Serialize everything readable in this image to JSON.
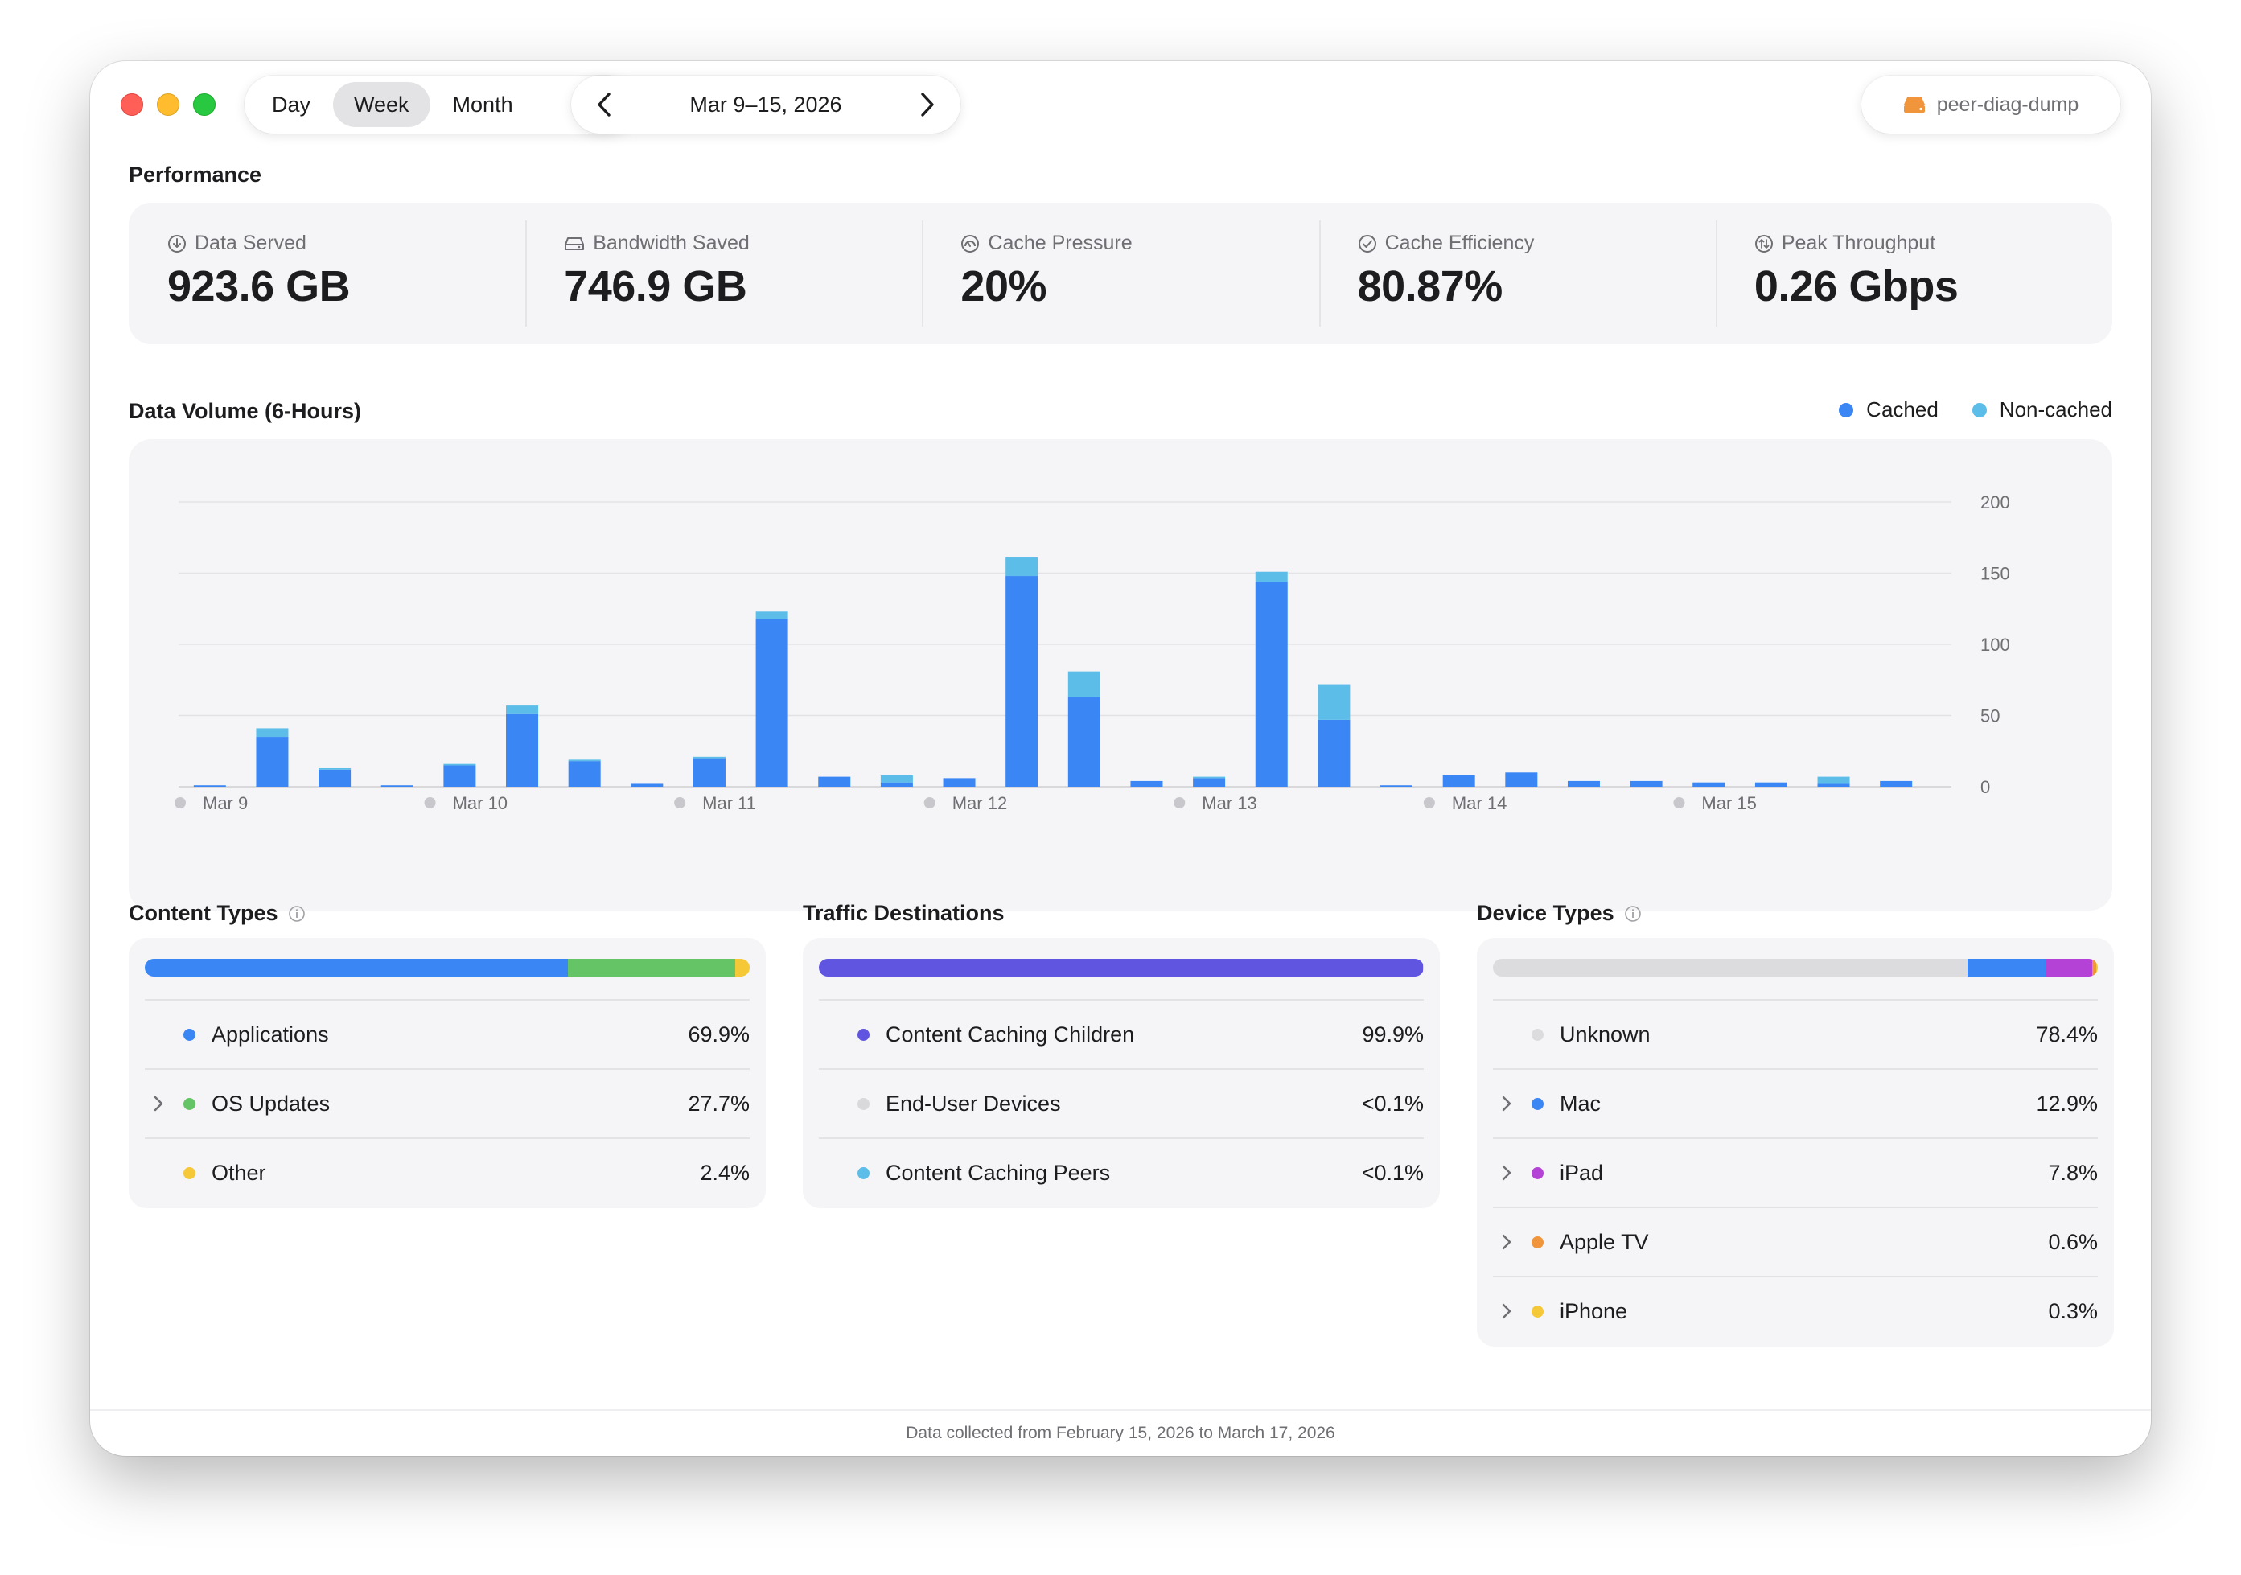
{
  "toolbar": {
    "periods": [
      "Day",
      "Week",
      "Month"
    ],
    "selected_period": "Week",
    "date_range": "Mar 9–15, 2026",
    "device_name": "peer-diag-dump"
  },
  "performance": {
    "title": "Performance",
    "metrics": [
      {
        "label": "Data Served",
        "value": "923.6 GB",
        "icon": "download-circle-icon"
      },
      {
        "label": "Bandwidth Saved",
        "value": "746.9 GB",
        "icon": "drive-icon"
      },
      {
        "label": "Cache Pressure",
        "value": "20%",
        "icon": "gauge-icon"
      },
      {
        "label": "Cache Efficiency",
        "value": "80.87%",
        "icon": "checkmark-circle-icon"
      },
      {
        "label": "Peak Throughput",
        "value": "0.26 Gbps",
        "icon": "arrows-updown-circle-icon"
      }
    ]
  },
  "volume": {
    "title": "Data Volume (6-Hours)",
    "legend": {
      "cached": "Cached",
      "noncached": "Non-cached"
    }
  },
  "colors": {
    "cached": "#3a86f4",
    "noncached": "#5cbde8",
    "accent_orange": "#f0953c",
    "traffic_purple": "#5f55e0"
  },
  "chart_data": {
    "type": "bar",
    "stacked": true,
    "x": [
      "Mar 9 00",
      "Mar 9 06",
      "Mar 9 12",
      "Mar 9 18",
      "Mar 10 00",
      "Mar 10 06",
      "Mar 10 12",
      "Mar 10 18",
      "Mar 11 00",
      "Mar 11 06",
      "Mar 11 12",
      "Mar 11 18",
      "Mar 12 00",
      "Mar 12 06",
      "Mar 12 12",
      "Mar 12 18",
      "Mar 13 00",
      "Mar 13 06",
      "Mar 13 12",
      "Mar 13 18",
      "Mar 14 00",
      "Mar 14 06",
      "Mar 14 12",
      "Mar 14 18",
      "Mar 15 00",
      "Mar 15 06",
      "Mar 15 12",
      "Mar 15 18"
    ],
    "tick_labels": [
      "Mar 9",
      "Mar 10",
      "Mar 11",
      "Mar 12",
      "Mar 13",
      "Mar 14",
      "Mar 15"
    ],
    "series": [
      {
        "name": "Cached",
        "values": [
          1,
          35,
          12,
          1,
          15,
          51,
          18,
          2,
          20,
          118,
          7,
          3,
          6,
          148,
          63,
          4,
          6,
          144,
          47,
          1,
          8,
          10,
          4,
          4,
          3,
          3,
          2,
          4
        ]
      },
      {
        "name": "Non-cached",
        "values": [
          0,
          6,
          1,
          0,
          1,
          6,
          1,
          0,
          1,
          5,
          0,
          5,
          0,
          13,
          18,
          0,
          1,
          7,
          25,
          0,
          0,
          0,
          0,
          0,
          0,
          0,
          5,
          0
        ]
      }
    ],
    "y_ticks": [
      0,
      50,
      100,
      150,
      200
    ],
    "ylim": [
      0,
      200
    ],
    "grid": true,
    "legend_position": "top-right"
  },
  "content_types": {
    "title": "Content Types",
    "info_icon": "info-circle-icon",
    "items": [
      {
        "name": "Applications",
        "pct": "69.9%",
        "value": 69.9,
        "color": "#3a86f4",
        "expandable": false
      },
      {
        "name": "OS Updates",
        "pct": "27.7%",
        "value": 27.7,
        "color": "#65c466",
        "expandable": true
      },
      {
        "name": "Other",
        "pct": "2.4%",
        "value": 2.4,
        "color": "#f5c838",
        "expandable": false
      }
    ]
  },
  "traffic_destinations": {
    "title": "Traffic Destinations",
    "items": [
      {
        "name": "Content Caching Children",
        "pct": "99.9%",
        "value": 99.9,
        "color": "#5f55e0",
        "expandable": false
      },
      {
        "name": "End-User Devices",
        "pct": "<0.1%",
        "value": 0.05,
        "color": "#d9d9db",
        "expandable": false
      },
      {
        "name": "Content Caching Peers",
        "pct": "<0.1%",
        "value": 0.05,
        "color": "#5cbde8",
        "expandable": false
      }
    ]
  },
  "device_types": {
    "title": "Device Types",
    "info_icon": "info-circle-icon",
    "items": [
      {
        "name": "Unknown",
        "pct": "78.4%",
        "value": 78.4,
        "color": "#dcdcde",
        "expandable": false
      },
      {
        "name": "Mac",
        "pct": "12.9%",
        "value": 12.9,
        "color": "#3a86f4",
        "expandable": true
      },
      {
        "name": "iPad",
        "pct": "7.8%",
        "value": 7.8,
        "color": "#b542d6",
        "expandable": true
      },
      {
        "name": "Apple TV",
        "pct": "0.6%",
        "value": 0.6,
        "color": "#f0953c",
        "expandable": true
      },
      {
        "name": "iPhone",
        "pct": "0.3%",
        "value": 0.3,
        "color": "#f5c838",
        "expandable": true
      }
    ]
  },
  "footer": "Data collected from February 15, 2026 to March 17, 2026"
}
